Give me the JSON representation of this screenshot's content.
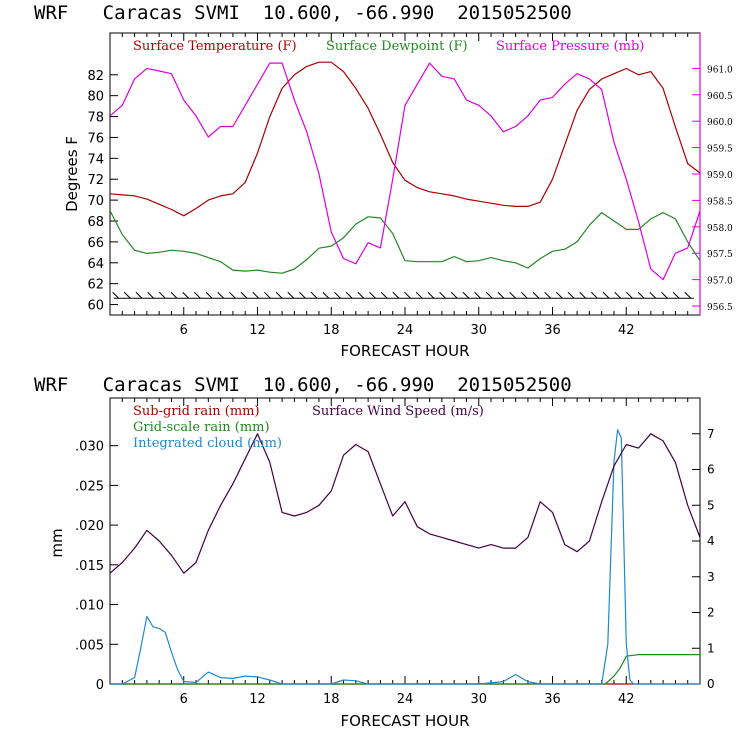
{
  "chart_data": [
    {
      "type": "line",
      "title": "WRF   Caracas SVMI  10.600, -66.990  2015052500",
      "xlabel": "FORECAST HOUR",
      "ylabel": "Degrees F",
      "xlim": [
        0,
        48
      ],
      "ylim": [
        59,
        86
      ],
      "x_ticks": [
        "6",
        "12",
        "18",
        "24",
        "30",
        "36",
        "42"
      ],
      "y_ticks": [
        "60",
        "62",
        "64",
        "66",
        "68",
        "70",
        "72",
        "74",
        "76",
        "78",
        "80",
        "82"
      ],
      "y2_ticks": [
        "956.5",
        "957.0",
        "957.5",
        "958.0",
        "958.5",
        "959.0",
        "959.5",
        "960.0",
        "960.5",
        "961.0"
      ],
      "y2lim": [
        956.33,
        961.67
      ],
      "legend": [
        "Surface Temperature (F)",
        "Surface Dewpoint (F)",
        "Surface Pressure (mb)"
      ],
      "series": [
        {
          "name": "Surface Temperature (F)",
          "color": "#aa0000",
          "axis": "left",
          "x": [
            0,
            1,
            2,
            3,
            4,
            5,
            6,
            7,
            8,
            9,
            10,
            11,
            12,
            13,
            14,
            15,
            16,
            17,
            18,
            19,
            20,
            21,
            22,
            23,
            24,
            25,
            26,
            27,
            28,
            29,
            30,
            31,
            32,
            33,
            34,
            35,
            36,
            37,
            38,
            39,
            40,
            41,
            42,
            43,
            44,
            45,
            46,
            47,
            48
          ],
          "values": [
            70.6,
            70.5,
            70.4,
            70.1,
            69.6,
            69.1,
            68.5,
            69.2,
            70.0,
            70.4,
            70.6,
            71.7,
            74.5,
            78.0,
            80.7,
            82.0,
            82.8,
            83.2,
            83.2,
            82.3,
            80.7,
            78.8,
            76.3,
            73.6,
            71.9,
            71.2,
            70.8,
            70.6,
            70.4,
            70.1,
            69.9,
            69.7,
            69.5,
            69.4,
            69.4,
            69.8,
            72.0,
            75.3,
            78.6,
            80.6,
            81.6,
            82.1,
            82.6,
            82.0,
            82.3,
            80.7,
            77.0,
            73.5,
            72.6
          ]
        },
        {
          "name": "Surface Dewpoint (F)",
          "color": "#228822",
          "axis": "left",
          "x": [
            0,
            1,
            2,
            3,
            4,
            5,
            6,
            7,
            8,
            9,
            10,
            11,
            12,
            13,
            14,
            15,
            16,
            17,
            18,
            19,
            20,
            21,
            22,
            23,
            24,
            25,
            26,
            27,
            28,
            29,
            30,
            31,
            32,
            33,
            34,
            35,
            36,
            37,
            38,
            39,
            40,
            41,
            42,
            43,
            44,
            45,
            46,
            47,
            48
          ],
          "values": [
            69.0,
            66.7,
            65.2,
            64.9,
            65.0,
            65.2,
            65.1,
            64.9,
            64.5,
            64.1,
            63.3,
            63.2,
            63.3,
            63.1,
            63.0,
            63.4,
            64.3,
            65.4,
            65.6,
            66.4,
            67.7,
            68.4,
            68.3,
            66.8,
            64.2,
            64.1,
            64.1,
            64.1,
            64.6,
            64.1,
            64.2,
            64.5,
            64.2,
            64.0,
            63.5,
            64.4,
            65.1,
            65.3,
            66.0,
            67.6,
            68.8,
            68.0,
            67.2,
            67.2,
            68.2,
            68.8,
            68.2,
            66.0,
            64.2
          ]
        },
        {
          "name": "Surface Pressure (mb)",
          "color": "#dd00dd",
          "axis": "right",
          "x": [
            0,
            1,
            2,
            3,
            4,
            5,
            6,
            7,
            8,
            9,
            10,
            11,
            12,
            13,
            14,
            15,
            16,
            17,
            18,
            19,
            20,
            21,
            22,
            23,
            24,
            25,
            26,
            27,
            28,
            29,
            30,
            31,
            32,
            33,
            34,
            35,
            36,
            37,
            38,
            39,
            40,
            41,
            42,
            43,
            44,
            45,
            46,
            47,
            48
          ],
          "values": [
            960.1,
            960.3,
            960.8,
            961.0,
            960.95,
            960.9,
            960.4,
            960.1,
            959.7,
            959.9,
            959.9,
            960.3,
            960.7,
            961.1,
            961.1,
            960.4,
            959.8,
            959.0,
            957.9,
            957.4,
            957.3,
            957.7,
            957.6,
            958.9,
            960.3,
            960.7,
            961.1,
            960.85,
            960.8,
            960.4,
            960.3,
            960.1,
            959.8,
            959.9,
            960.1,
            960.4,
            960.45,
            960.7,
            960.9,
            960.8,
            960.6,
            959.6,
            958.9,
            958.1,
            957.2,
            957.0,
            957.5,
            957.6,
            958.3
          ]
        }
      ],
      "wind_barbs": true
    },
    {
      "type": "line",
      "title": "WRF   Caracas SVMI  10.600, -66.990  2015052500",
      "xlabel": "FORECAST HOUR",
      "ylabel": "mm",
      "xlim": [
        0,
        48
      ],
      "ylim": [
        0,
        0.036
      ],
      "x_ticks": [
        "6",
        "12",
        "18",
        "24",
        "30",
        "36",
        "42"
      ],
      "y_ticks": [
        "0",
        ".005",
        ".010",
        ".015",
        ".020",
        ".025",
        ".030"
      ],
      "y2_ticks": [
        "0",
        "1",
        "2",
        "3",
        "4",
        "5",
        "6",
        "7"
      ],
      "y2lim": [
        0,
        8
      ],
      "legend": [
        "Sub-grid rain (mm)",
        "Grid-scale rain (mm)",
        "Integrated cloud (mm)",
        "Surface Wind Speed (m/s)"
      ],
      "series": [
        {
          "name": "Sub-grid rain (mm)",
          "color": "#aa0000",
          "axis": "left",
          "x": [
            0,
            48
          ],
          "values": [
            0,
            0
          ]
        },
        {
          "name": "Grid-scale rain (mm)",
          "color": "#228822",
          "axis": "left",
          "x": [
            0,
            40.3,
            41.0,
            41.5,
            42.0,
            43.0,
            48
          ],
          "values": [
            0,
            0,
            0.001,
            0.002,
            0.0035,
            0.0037,
            0.0037
          ]
        },
        {
          "name": "Integrated cloud (mm)",
          "color": "#2288cc",
          "axis": "left",
          "x": [
            0,
            1,
            2,
            2.5,
            3,
            3.5,
            4,
            4.5,
            5,
            5.5,
            6,
            7,
            8,
            9,
            10,
            11,
            12,
            13,
            14,
            18,
            19,
            20,
            21,
            22,
            28,
            30,
            32,
            33,
            34,
            35,
            40,
            40.5,
            41,
            41.3,
            41.6,
            42,
            42.3,
            42.6,
            43,
            48
          ],
          "values": [
            0,
            0,
            0.0008,
            0.0045,
            0.0085,
            0.0072,
            0.007,
            0.0065,
            0.004,
            0.0018,
            0.0003,
            0.0002,
            0.0015,
            0.0008,
            0.0007,
            0.001,
            0.0009,
            0.0005,
            0,
            0,
            0.0005,
            0.0004,
            0,
            0,
            0,
            0,
            0.0003,
            0.0012,
            0.0003,
            0,
            0,
            0.005,
            0.028,
            0.032,
            0.031,
            0.005,
            0.0005,
            0,
            0,
            0
          ]
        },
        {
          "name": "Surface Wind Speed (m/s)",
          "color": "#440044",
          "axis": "right",
          "x": [
            0,
            1,
            2,
            3,
            4,
            5,
            6,
            7,
            8,
            9,
            10,
            11,
            12,
            13,
            14,
            15,
            16,
            17,
            18,
            19,
            20,
            21,
            22,
            23,
            24,
            25,
            26,
            27,
            28,
            29,
            30,
            31,
            32,
            33,
            34,
            35,
            36,
            37,
            38,
            39,
            40,
            41,
            42,
            43,
            44,
            45,
            46,
            47,
            48
          ],
          "values": [
            3.1,
            3.4,
            3.8,
            4.3,
            4.0,
            3.6,
            3.1,
            3.4,
            4.3,
            5.0,
            5.6,
            6.3,
            7.0,
            6.2,
            4.8,
            4.7,
            4.8,
            5.0,
            5.4,
            6.4,
            6.7,
            6.5,
            5.6,
            4.7,
            5.1,
            4.4,
            4.2,
            4.1,
            4.0,
            3.9,
            3.8,
            3.9,
            3.8,
            3.8,
            4.1,
            5.1,
            4.8,
            3.9,
            3.7,
            4.0,
            5.1,
            6.1,
            6.7,
            6.6,
            7.0,
            6.8,
            6.2,
            5.0,
            4.1
          ]
        }
      ]
    }
  ]
}
